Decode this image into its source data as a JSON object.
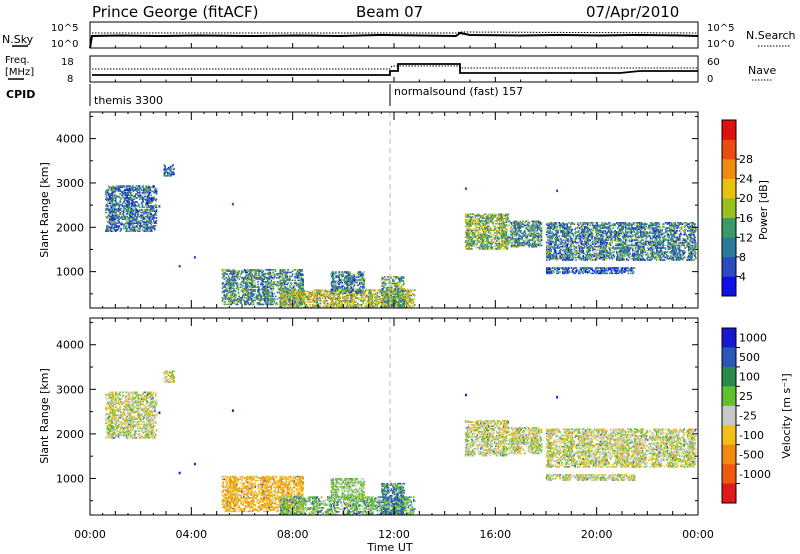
{
  "header": {
    "station": "Prince George (fitACF)",
    "beam": "Beam 07",
    "date": "07/Apr/2010"
  },
  "status_panel": {
    "left_label": "N.Sky",
    "right_label": "N.Search",
    "left_ticks": [
      "10^5",
      "10^0"
    ],
    "right_ticks": [
      "10^5",
      "10^0"
    ]
  },
  "freq_panel": {
    "left_label_1": "Freq.",
    "left_label_2": "[MHz]",
    "right_label": "Nave",
    "left_ticks": [
      "18",
      "8"
    ],
    "right_ticks": [
      "60",
      "0"
    ]
  },
  "cpid_panel": {
    "label": "CPID",
    "programs": [
      {
        "name": "themis 3300",
        "start": 0
      },
      {
        "name": "normalsound (fast) 157",
        "start": 12
      }
    ]
  },
  "x_axis": {
    "label": "Time UT",
    "tick_labels": [
      "00:00",
      "04:00",
      "08:00",
      "12:00",
      "16:00",
      "20:00",
      "00:00"
    ],
    "range": [
      0,
      24
    ]
  },
  "colorbars": {
    "power": {
      "label": "Power [dB]",
      "ticks": [
        "4",
        "8",
        "12",
        "16",
        "20",
        "24",
        "28"
      ],
      "colors": [
        "#1010e6",
        "#2a4cc0",
        "#2a7a9a",
        "#3a9a6a",
        "#9ac020",
        "#e8c010",
        "#f08c10",
        "#e84e10",
        "#e01010"
      ]
    },
    "velocity": {
      "label": "Velocity [m s⁻¹]",
      "ticks": [
        "1000",
        "500",
        "100",
        "25",
        "-25",
        "-100",
        "-500",
        "-1000"
      ],
      "colors": [
        "#1818d0",
        "#2a56b8",
        "#2a8a4a",
        "#60c030",
        "#c8c8c8",
        "#f0c018",
        "#f08a10",
        "#f05a10",
        "#e01818"
      ]
    }
  },
  "chart_data": [
    {
      "type": "heatmap",
      "title": "Power",
      "xlabel": "Time UT",
      "ylabel": "Slant Range [km]",
      "xlim": [
        0,
        24
      ],
      "ylim": [
        180,
        4600
      ],
      "yticks": [
        1000,
        2000,
        3000,
        4000
      ],
      "cbar_label": "Power [dB]",
      "cbar_range": [
        0,
        30
      ],
      "regions": [
        {
          "t0": 0.6,
          "t1": 2.6,
          "r0": 1900,
          "r1": 2950,
          "p": 8
        },
        {
          "t0": 2.9,
          "t1": 3.3,
          "r0": 3150,
          "r1": 3400,
          "p": 6
        },
        {
          "t0": 5.2,
          "t1": 8.4,
          "r0": 250,
          "r1": 1050,
          "p": 10
        },
        {
          "t0": 7.5,
          "t1": 12.8,
          "r0": 180,
          "r1": 600,
          "p": 16
        },
        {
          "t0": 9.5,
          "t1": 10.8,
          "r0": 500,
          "r1": 1000,
          "p": 9
        },
        {
          "t0": 11.5,
          "t1": 12.4,
          "r0": 180,
          "r1": 900,
          "p": 12
        },
        {
          "t0": 14.8,
          "t1": 16.5,
          "r0": 1500,
          "r1": 2300,
          "p": 14
        },
        {
          "t0": 16.5,
          "t1": 17.8,
          "r0": 1550,
          "r1": 2150,
          "p": 10
        },
        {
          "t0": 18.0,
          "t1": 23.9,
          "r0": 1250,
          "r1": 2100,
          "p": 9
        },
        {
          "t0": 18.0,
          "t1": 21.5,
          "r0": 950,
          "r1": 1100,
          "p": 6
        }
      ]
    },
    {
      "type": "heatmap",
      "title": "Velocity",
      "xlabel": "Time UT",
      "ylabel": "Slant Range [km]",
      "xlim": [
        0,
        24
      ],
      "ylim": [
        180,
        4600
      ],
      "yticks": [
        1000,
        2000,
        3000,
        4000
      ],
      "cbar_label": "Velocity [m s⁻¹]",
      "cbar_range": [
        -1000,
        1000
      ],
      "regions": [
        {
          "t0": 0.6,
          "t1": 2.6,
          "r0": 1900,
          "r1": 2950,
          "v": 0
        },
        {
          "t0": 2.9,
          "t1": 3.3,
          "r0": 3150,
          "r1": 3400,
          "v": 0
        },
        {
          "t0": 5.2,
          "t1": 8.4,
          "r0": 250,
          "r1": 1050,
          "v": -80
        },
        {
          "t0": 7.5,
          "t1": 12.8,
          "r0": 180,
          "r1": 600,
          "v": 60
        },
        {
          "t0": 9.5,
          "t1": 10.8,
          "r0": 500,
          "r1": 1000,
          "v": 40
        },
        {
          "t0": 11.5,
          "t1": 12.4,
          "r0": 180,
          "r1": 900,
          "v": 120
        },
        {
          "t0": 14.8,
          "t1": 16.5,
          "r0": 1500,
          "r1": 2300,
          "v": 0
        },
        {
          "t0": 16.5,
          "t1": 17.8,
          "r0": 1550,
          "r1": 2150,
          "v": 0
        },
        {
          "t0": 18.0,
          "t1": 23.9,
          "r0": 1250,
          "r1": 2100,
          "v": 0
        },
        {
          "t0": 18.0,
          "t1": 21.5,
          "r0": 950,
          "r1": 1100,
          "v": 0
        }
      ]
    }
  ]
}
